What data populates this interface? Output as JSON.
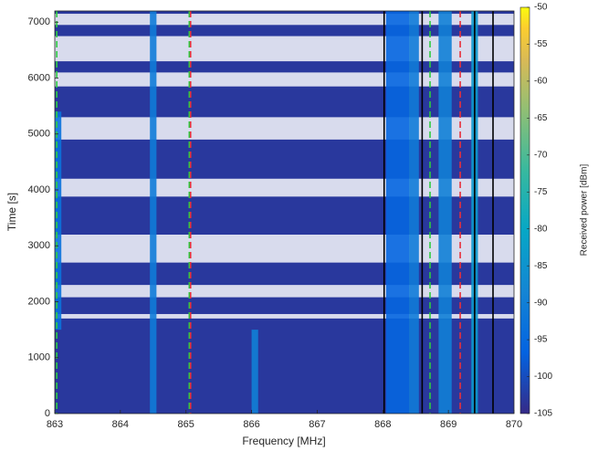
{
  "chart_data": {
    "type": "heatmap",
    "x_label": "Frequency [MHz]",
    "y_label": "Time [s]",
    "colorbar_label": "Received power [dBm]",
    "colormap": "parula",
    "xlim": [
      863,
      870
    ],
    "xticks": [
      863,
      864,
      865,
      866,
      867,
      868,
      869,
      870
    ],
    "ylim": [
      0,
      7200
    ],
    "yticks": [
      0,
      1000,
      2000,
      3000,
      4000,
      5000,
      6000,
      7000
    ],
    "clim": [
      -105,
      -50
    ],
    "cticks": [
      -105,
      -100,
      -95,
      -90,
      -85,
      -80,
      -75,
      -70,
      -65,
      -60,
      -55,
      -50
    ],
    "background_power": -103,
    "gaps": [
      [
        1700,
        1780
      ],
      [
        2080,
        2300
      ],
      [
        2700,
        3200
      ],
      [
        3880,
        4200
      ],
      [
        4900,
        5300
      ],
      [
        5850,
        6100
      ],
      [
        6300,
        6750
      ],
      [
        6950,
        7150
      ]
    ],
    "channels": [
      {
        "f": [
          863.0,
          863.1
        ],
        "t": [
          1500,
          5400
        ],
        "power": -93
      },
      {
        "f": [
          864.45,
          864.55
        ],
        "t": [
          0,
          7200
        ],
        "power": -91
      },
      {
        "f": [
          866.0,
          866.1
        ],
        "t": [
          0,
          1500
        ],
        "power": -90
      },
      {
        "f": [
          868.05,
          868.4
        ],
        "t": [
          0,
          7200
        ],
        "power": -96
      },
      {
        "f": [
          868.4,
          868.55
        ],
        "t": [
          0,
          7200
        ],
        "power": -91
      },
      {
        "f": [
          868.85,
          869.05
        ],
        "t": [
          0,
          7200
        ],
        "power": -90
      },
      {
        "f": [
          869.35,
          869.45
        ],
        "t": [
          0,
          7200
        ],
        "power": -84
      }
    ],
    "markers": [
      {
        "freq": 863.03,
        "color": "#2ecc40",
        "dash": true
      },
      {
        "freq": 865.05,
        "color": "#2ecc40",
        "dash": true
      },
      {
        "freq": 865.07,
        "color": "#e8303a",
        "dash": true
      },
      {
        "freq": 868.02,
        "color": "#000000",
        "dash": false
      },
      {
        "freq": 868.6,
        "color": "#000000",
        "dash": false
      },
      {
        "freq": 868.72,
        "color": "#2ecc40",
        "dash": true
      },
      {
        "freq": 869.18,
        "color": "#e8303a",
        "dash": true
      },
      {
        "freq": 869.4,
        "color": "#000000",
        "dash": false
      },
      {
        "freq": 869.68,
        "color": "#000000",
        "dash": false
      }
    ]
  }
}
